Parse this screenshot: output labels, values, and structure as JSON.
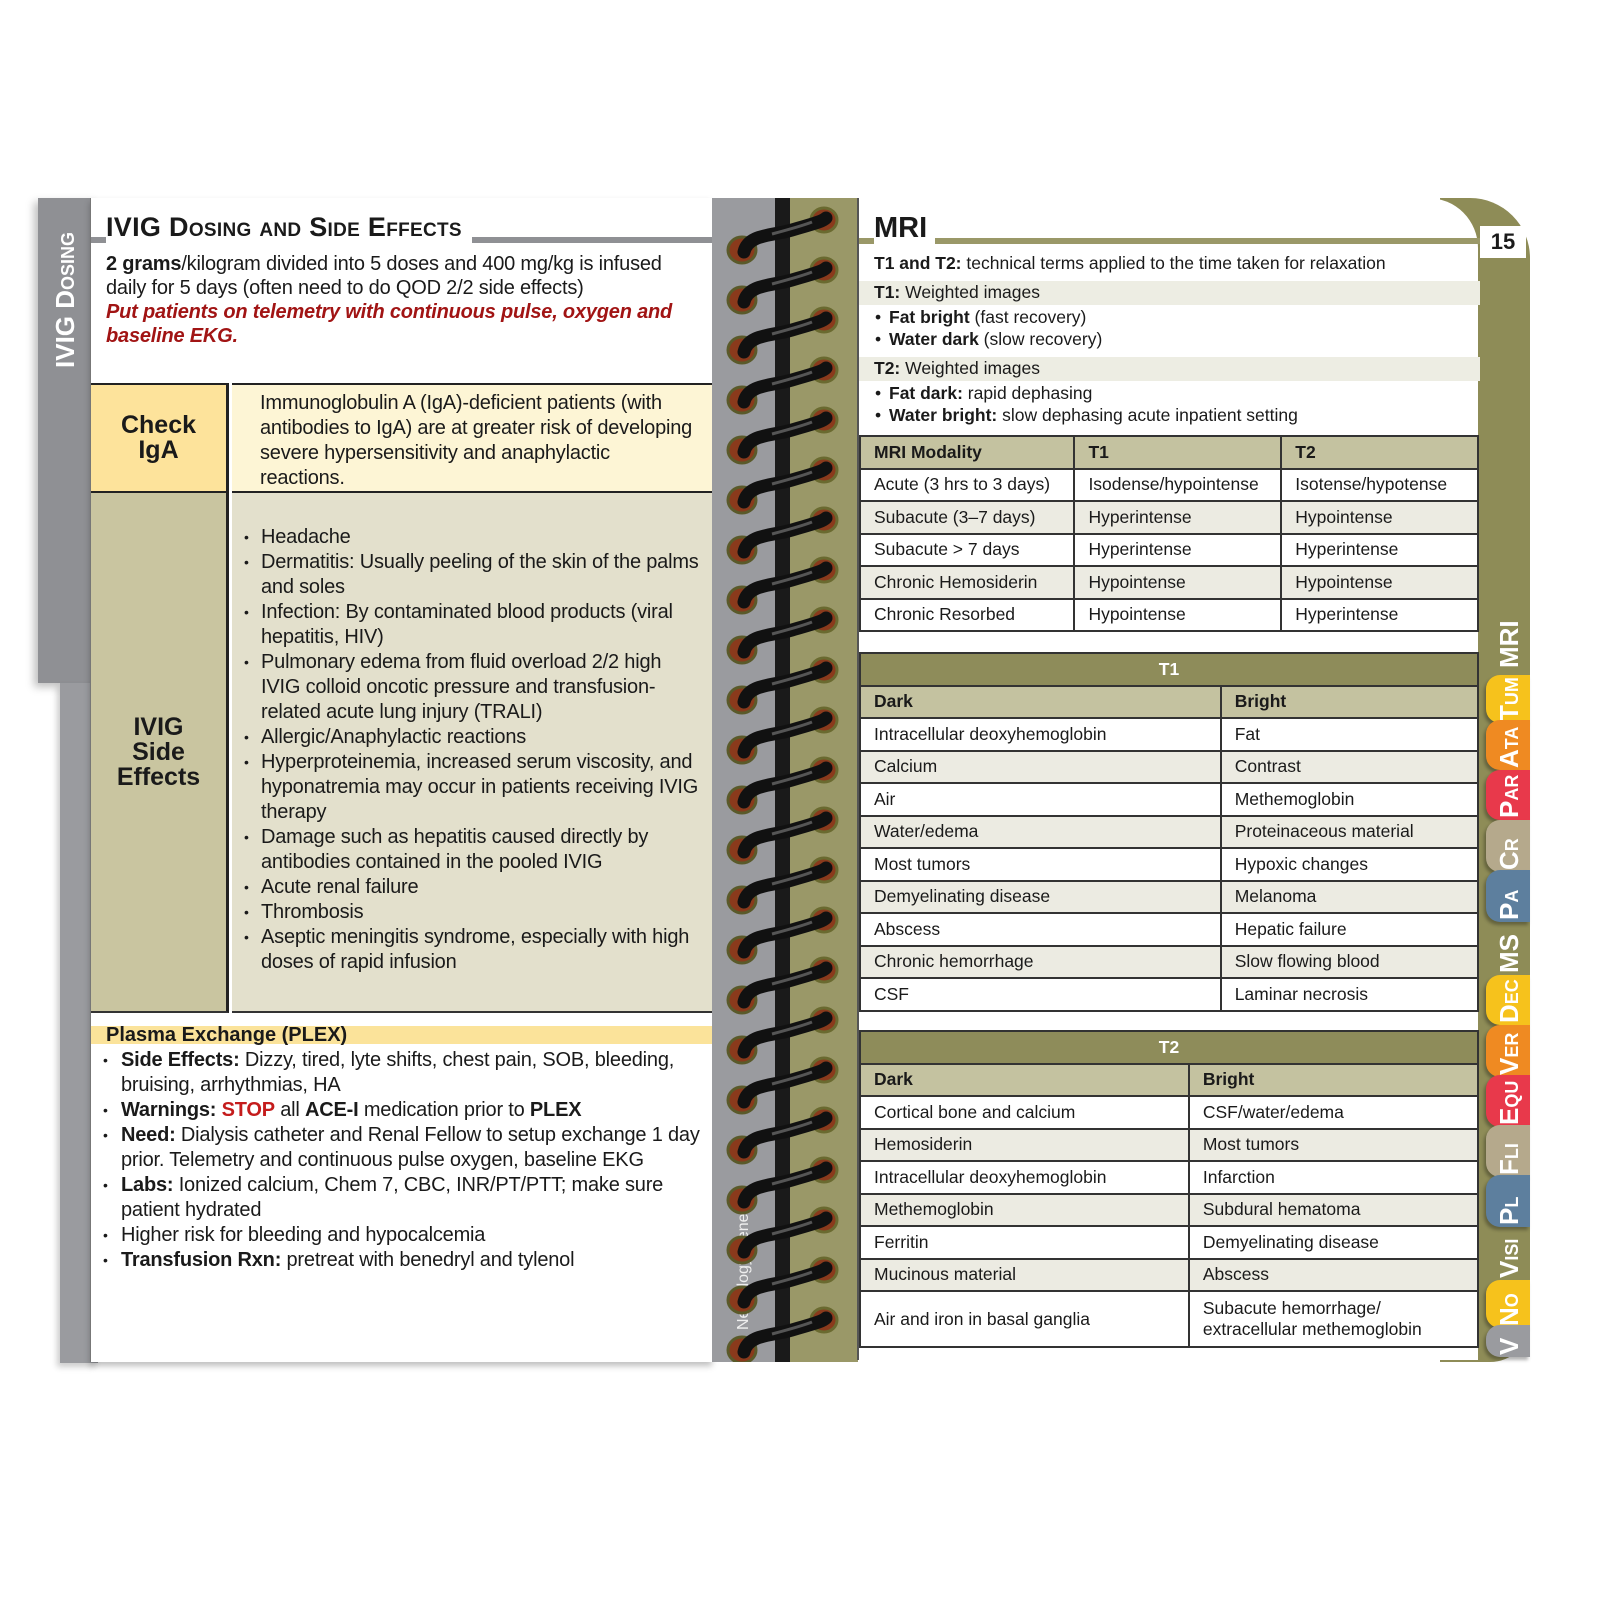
{
  "left": {
    "side_tab": "IVIG Dosing",
    "title": "IVIG Dosing and Side Effects",
    "intro": {
      "bold": "2 grams",
      "text": "/kilogram divided into 5 doses and 400 mg/kg is infused daily for 5 days (often need to do QOD 2/2 side effects)",
      "warning": "Put patients on telemetry with continuous pulse, oxygen and baseline EKG."
    },
    "iga": {
      "label": "Check IgA",
      "text": "Immunoglobulin A (IgA)-deficient patients (with antibodies to IgA) are at greater risk of developing severe hypersensitivity and anaphylactic reactions."
    },
    "side_effects": {
      "label": "IVIG Side Effects",
      "items": [
        "Headache",
        "Dermatitis: Usually peeling of the skin of the palms and soles",
        "Infection: By contaminated blood products (viral hepatitis, HIV)",
        "Pulmonary edema from fluid overload 2/2 high IVIG colloid oncotic pressure and transfusion-related acute lung injury (TRALI)",
        "Allergic/Anaphylactic reactions",
        "Hyperproteinemia, increased serum viscosity, and hyponatremia may occur in patients receiving IVIG therapy",
        "Damage such as hepatitis caused directly by antibodies contained in the pooled IVIG",
        "Acute renal failure",
        "Thrombosis",
        "Aseptic meningitis syndrome, especially with high doses of rapid infusion"
      ]
    },
    "plex": {
      "title": "Plasma Exchange (PLEX)",
      "items": [
        [
          {
            "b": "Side Effects:"
          },
          {
            "t": " Dizzy, tired, lyte shifts, chest pain, SOB, bleeding, bruising, arrhythmias, HA"
          }
        ],
        [
          {
            "b": "Warnings: "
          },
          {
            "r": "STOP"
          },
          {
            "t": " all "
          },
          {
            "b": "ACE-I"
          },
          {
            "t": " medication prior to "
          },
          {
            "b": "PLEX"
          }
        ],
        [
          {
            "b": "Need:"
          },
          {
            "t": " Dialysis catheter and Renal Fellow to setup exchange 1 day prior. Telemetry and continuous pulse oxygen, baseline EKG"
          }
        ],
        [
          {
            "b": "Labs:"
          },
          {
            "t": " Ionized calcium, Chem 7, CBC, INR/PT/PTT; make sure patient hydrated"
          }
        ],
        [
          {
            "t": "Higher risk for bleeding and hypocalcemia"
          }
        ],
        [
          {
            "b": "Transfusion Rxn:"
          },
          {
            "t": " pretreat with benedryl and tylenol"
          }
        ]
      ]
    }
  },
  "spine_text": "Neurology General",
  "right": {
    "title": "MRI",
    "page_number": "15",
    "lines": [
      {
        "b": "T1 and T2:",
        "t": " technical terms applied to the time taken for relaxation",
        "style": "plain"
      },
      {
        "b": "T1:",
        "t": " Weighted images",
        "style": "band"
      },
      {
        "b": "Fat bright",
        "t": " (fast recovery)",
        "style": "bul"
      },
      {
        "b": "Water dark",
        "t": " (slow recovery)",
        "style": "bul"
      },
      {
        "b": "T2:",
        "t": " Weighted images",
        "style": "band"
      },
      {
        "b": "Fat dark:",
        "t": " rapid dephasing",
        "style": "bul"
      },
      {
        "b": "Water bright:",
        "t": " slow dephasing acute inpatient setting",
        "style": "bul"
      }
    ],
    "modality_table": {
      "headers": [
        "MRI Modality",
        "T1",
        "T2"
      ],
      "rows": [
        [
          "Acute (3 hrs to 3 days)",
          "Isodense/hypointense",
          "Isotense/hypotense"
        ],
        [
          "Subacute (3–7 days)",
          "Hyperintense",
          "Hypointense"
        ],
        [
          "Subacute > 7 days",
          "Hyperintense",
          "Hyperintense"
        ],
        [
          "Chronic Hemosiderin",
          "Hypointense",
          "Hypointense"
        ],
        [
          "Chronic Resorbed",
          "Hypointense",
          "Hyperintense"
        ]
      ]
    },
    "t1_table": {
      "title": "T1",
      "headers": [
        "Dark",
        "Bright"
      ],
      "rows": [
        [
          "Intracellular deoxyhemoglobin",
          "Fat"
        ],
        [
          "Calcium",
          "Contrast"
        ],
        [
          "Air",
          "Methemoglobin"
        ],
        [
          "Water/edema",
          "Proteinaceous material"
        ],
        [
          "Most tumors",
          "Hypoxic changes"
        ],
        [
          "Demyelinating disease",
          "Melanoma"
        ],
        [
          "Abscess",
          "Hepatic failure"
        ],
        [
          "Chronic hemorrhage",
          "Slow flowing blood"
        ],
        [
          "CSF",
          "Laminar necrosis"
        ]
      ]
    },
    "t2_table": {
      "title": "T2",
      "headers": [
        "Dark",
        "Bright"
      ],
      "rows": [
        [
          "Cortical bone and calcium",
          "CSF/water/edema"
        ],
        [
          "Hemosiderin",
          "Most tumors"
        ],
        [
          "Intracellular deoxyhemoglobin",
          "Infarction"
        ],
        [
          "Methemoglobin",
          "Subdural hematoma"
        ],
        [
          "Ferritin",
          "Demyelinating disease"
        ],
        [
          "Mucinous material",
          "Abscess"
        ],
        [
          "Air and iron in basal ganglia",
          "Subacute hemorrhage/ extracellular methemoglobin"
        ]
      ]
    },
    "tabs": [
      {
        "label": "MRI",
        "color": "none"
      },
      {
        "label": "Tum",
        "color": "#f6c21c"
      },
      {
        "label": "Ata",
        "color": "#ef8a22"
      },
      {
        "label": "Par",
        "color": "#e8394b"
      },
      {
        "label": "Cr",
        "color": "#b5a98c"
      },
      {
        "label": "Pa",
        "color": "#5d7f9e"
      },
      {
        "label": "MS",
        "color": "none"
      },
      {
        "label": "Dec",
        "color": "#f6c21c"
      },
      {
        "label": "Ver",
        "color": "#ef8a22"
      },
      {
        "label": "Equ",
        "color": "#e8394b"
      },
      {
        "label": "Fli",
        "color": "#b5a98c"
      },
      {
        "label": "Pl",
        "color": "#5d7f9e"
      },
      {
        "label": "Visi",
        "color": "none"
      },
      {
        "label": "No",
        "color": "#f6c21c"
      },
      {
        "label": "V",
        "color": "#9a9b9f"
      }
    ]
  }
}
